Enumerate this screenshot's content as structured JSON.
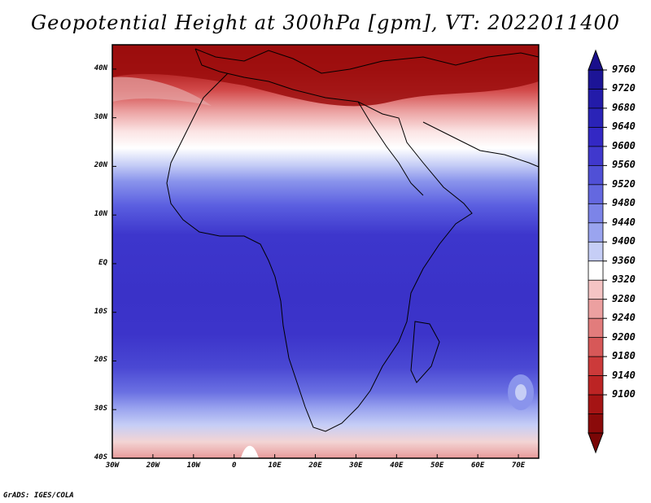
{
  "title": "Geopotential Height at 300hPa [gpm], VT: 2022011400",
  "credit": "GrADS: IGES/COLA",
  "map": {
    "lon_range": [
      -30,
      75
    ],
    "lat_range": [
      -40,
      45
    ],
    "lat_ticks": [
      "40N",
      "30N",
      "20N",
      "10N",
      "EQ",
      "10S",
      "20S",
      "30S",
      "40S"
    ],
    "lon_ticks": [
      "30W",
      "20W",
      "10W",
      "0",
      "10E",
      "20E",
      "30E",
      "40E",
      "50E",
      "60E",
      "70E"
    ]
  },
  "colorbar": {
    "levels": [
      "9760",
      "9720",
      "9680",
      "9640",
      "9600",
      "9560",
      "9520",
      "9480",
      "9440",
      "9400",
      "9360",
      "9320",
      "9280",
      "9240",
      "9200",
      "9180",
      "9140",
      "9100"
    ],
    "colors": [
      "#1c1496",
      "#231ba9",
      "#2a23b7",
      "#3328c4",
      "#4038cd",
      "#5050d6",
      "#6468e0",
      "#7c84e8",
      "#9aa4ef",
      "#c6cef6",
      "#ffffff",
      "#f5c4c4",
      "#eca0a0",
      "#e27c7c",
      "#d75858",
      "#cc3a3a",
      "#bc2424",
      "#a51414",
      "#8b0a0a"
    ]
  }
}
